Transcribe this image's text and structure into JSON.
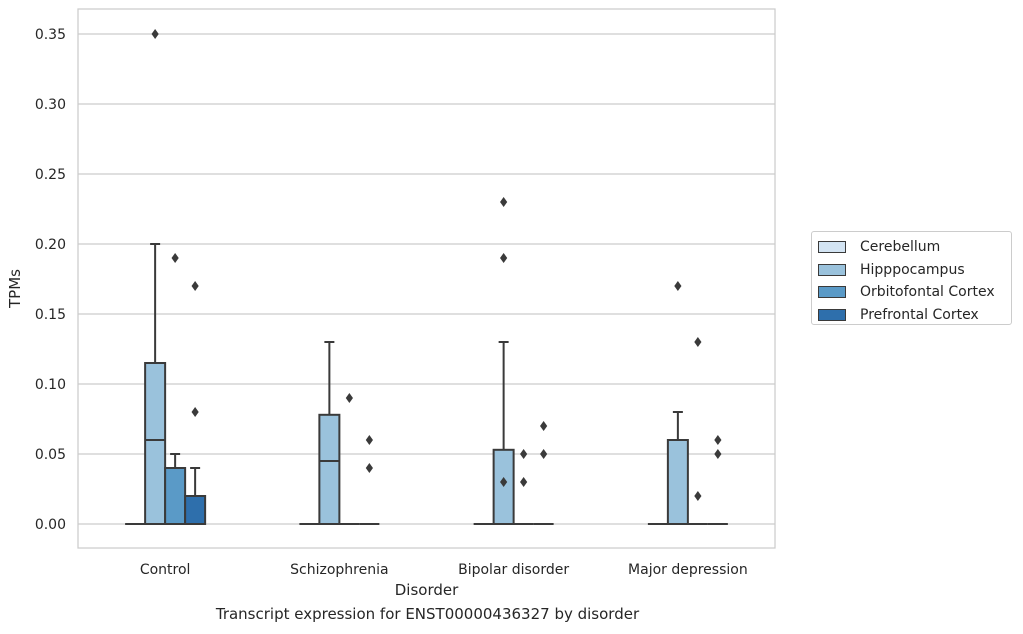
{
  "caption": "Transcript expression for ENST00000436327 by disorder",
  "chart_data": {
    "type": "box",
    "xlabel": "Disorder",
    "ylabel": "TPMs",
    "ylim": [
      -0.017,
      0.368
    ],
    "yticks": [
      0.0,
      0.05,
      0.1,
      0.15,
      0.2,
      0.25,
      0.3,
      0.35
    ],
    "ytick_labels": [
      "0.00",
      "0.05",
      "0.10",
      "0.15",
      "0.20",
      "0.25",
      "0.30",
      "0.35"
    ],
    "categories": [
      "Control",
      "Schizophrenia",
      "Bipolar disorder",
      "Major depression"
    ],
    "grid": true,
    "legend_position": "right",
    "series": [
      {
        "name": "Cerebellum",
        "color": "#d3e4f3",
        "boxes": [
          {
            "min": 0,
            "q1": 0,
            "median": 0,
            "q3": 0,
            "max": 0,
            "outliers": []
          },
          {
            "min": 0,
            "q1": 0,
            "median": 0,
            "q3": 0,
            "max": 0,
            "outliers": []
          },
          {
            "min": 0,
            "q1": 0,
            "median": 0,
            "q3": 0,
            "max": 0,
            "outliers": []
          },
          {
            "min": 0,
            "q1": 0,
            "median": 0,
            "q3": 0,
            "max": 0,
            "outliers": []
          }
        ]
      },
      {
        "name": "Hipppocampus",
        "color": "#9ac2dc",
        "boxes": [
          {
            "min": 0,
            "q1": 0,
            "median": 0.06,
            "q3": 0.115,
            "max": 0.2,
            "outliers": [
              0.35
            ]
          },
          {
            "min": 0,
            "q1": 0,
            "median": 0.045,
            "q3": 0.078,
            "max": 0.13,
            "outliers": []
          },
          {
            "min": 0,
            "q1": 0,
            "median": 0,
            "q3": 0.053,
            "max": 0.13,
            "outliers": [
              0.03,
              0.19,
              0.23
            ]
          },
          {
            "min": 0,
            "q1": 0,
            "median": 0,
            "q3": 0.06,
            "max": 0.08,
            "outliers": [
              0.17
            ]
          }
        ]
      },
      {
        "name": "Orbitofontal Cortex",
        "color": "#5a9ac7",
        "boxes": [
          {
            "min": 0,
            "q1": 0,
            "median": 0,
            "q3": 0.04,
            "max": 0.05,
            "outliers": [
              0.19
            ]
          },
          {
            "min": 0,
            "q1": 0,
            "median": 0,
            "q3": 0,
            "max": 0,
            "outliers": [
              0.09
            ]
          },
          {
            "min": 0,
            "q1": 0,
            "median": 0,
            "q3": 0,
            "max": 0,
            "outliers": [
              0.03,
              0.05
            ]
          },
          {
            "min": 0,
            "q1": 0,
            "median": 0,
            "q3": 0,
            "max": 0,
            "outliers": [
              0.02,
              0.13
            ]
          }
        ]
      },
      {
        "name": "Prefrontal Cortex",
        "color": "#2e6fac",
        "boxes": [
          {
            "min": 0,
            "q1": 0,
            "median": 0,
            "q3": 0.02,
            "max": 0.04,
            "outliers": [
              0.08,
              0.17
            ]
          },
          {
            "min": 0,
            "q1": 0,
            "median": 0,
            "q3": 0,
            "max": 0,
            "outliers": [
              0.04,
              0.06
            ]
          },
          {
            "min": 0,
            "q1": 0,
            "median": 0,
            "q3": 0,
            "max": 0,
            "outliers": [
              0.05,
              0.07
            ]
          },
          {
            "min": 0,
            "q1": 0,
            "median": 0,
            "q3": 0,
            "max": 0,
            "outliers": [
              0.05,
              0.06
            ]
          }
        ]
      }
    ]
  }
}
